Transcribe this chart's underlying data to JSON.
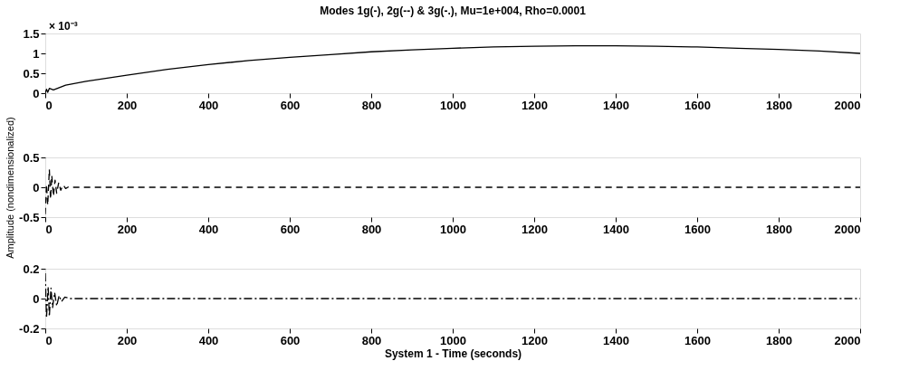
{
  "chart_data": [
    {
      "type": "line",
      "title": "Modes 1g(-), 2g(--) & 3g(-.), Mu=1e+004, Rho=0.0001",
      "annotations": [
        "× 10⁻³"
      ],
      "x": [
        0,
        3,
        6,
        10,
        20,
        50,
        100,
        200,
        300,
        400,
        500,
        600,
        700,
        800,
        900,
        1000,
        1100,
        1200,
        1300,
        1400,
        1500,
        1600,
        1700,
        1800,
        1900,
        2000
      ],
      "series": [
        {
          "color": "#000000",
          "values": [
            0,
            0.1,
            0.02,
            0.12,
            0.08,
            0.2,
            0.3,
            0.45,
            0.6,
            0.72,
            0.82,
            0.9,
            0.97,
            1.04,
            1.09,
            1.13,
            1.16,
            1.18,
            1.19,
            1.19,
            1.18,
            1.16,
            1.13,
            1.1,
            1.06,
            1.0
          ]
        }
      ],
      "line_style": "solid",
      "xlim": [
        0,
        2000
      ],
      "xticks": [
        0,
        200,
        400,
        600,
        800,
        1000,
        1200,
        1400,
        1600,
        1800,
        2000
      ],
      "ylim": [
        0,
        1.5
      ],
      "yticks": [
        0,
        0.5,
        1,
        1.5
      ],
      "grid": false
    },
    {
      "type": "line",
      "ylabel": "Amplitude (nondimensionalized)",
      "x": [
        0,
        3,
        6,
        10,
        13,
        16,
        20,
        24,
        28,
        33,
        38,
        44,
        50,
        58,
        70,
        2000
      ],
      "series": [
        {
          "color": "#000000",
          "values": [
            -0.45,
            0.05,
            -0.3,
            0.3,
            -0.2,
            0.2,
            -0.15,
            0.12,
            -0.1,
            0.08,
            -0.05,
            0.04,
            -0.02,
            0.01,
            0,
            0
          ]
        }
      ],
      "line_style": "dashed",
      "xlim": [
        0,
        2000
      ],
      "xticks": [
        0,
        200,
        400,
        600,
        800,
        1000,
        1200,
        1400,
        1600,
        1800,
        2000
      ],
      "ylim": [
        -0.5,
        0.5
      ],
      "yticks": [
        -0.5,
        0,
        0.5
      ],
      "grid": false
    },
    {
      "type": "line",
      "xlabel": "System 1 - Time (seconds)",
      "x": [
        0,
        3,
        7,
        10,
        14,
        18,
        23,
        28,
        34,
        40,
        48,
        60,
        2000
      ],
      "series": [
        {
          "color": "#000000",
          "values": [
            0.17,
            -0.13,
            0.08,
            -0.12,
            0.07,
            -0.06,
            0.04,
            -0.05,
            0.02,
            -0.02,
            0.01,
            0,
            0
          ]
        }
      ],
      "line_style": "dotted",
      "xlim": [
        0,
        2000
      ],
      "xticks": [
        0,
        200,
        400,
        600,
        800,
        1000,
        1200,
        1400,
        1600,
        1800,
        2000
      ],
      "ylim": [
        -0.2,
        0.2
      ],
      "yticks": [
        -0.2,
        0,
        0.2
      ],
      "grid": false
    }
  ]
}
